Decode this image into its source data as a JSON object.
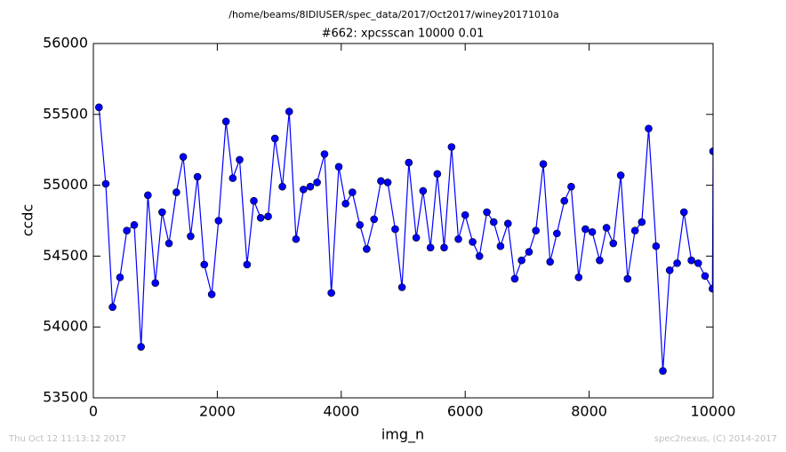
{
  "chart_data": {
    "type": "line",
    "suptitle": "/home/beams/8IDIUSER/spec_data/2017/Oct2017/winey20171010a",
    "title": "#662: xpcsscan 10000 0.01",
    "xlabel": "img_n",
    "ylabel": "ccdc",
    "footer_left": "Thu Oct 12 11:13:12 2017",
    "footer_right": "spec2nexus, (C) 2014-2017",
    "color": "#0000ff",
    "marker": "o",
    "x": [
      90,
      200,
      310,
      430,
      540,
      660,
      770,
      880,
      1000,
      1110,
      1220,
      1340,
      1450,
      1570,
      1680,
      1790,
      1910,
      2020,
      2140,
      2250,
      2360,
      2480,
      2590,
      2700,
      2820,
      2930,
      3050,
      3160,
      3270,
      3390,
      3500,
      3610,
      3730,
      3840,
      3960,
      4070,
      4180,
      4300,
      4410,
      4530,
      4640,
      4750,
      4870,
      4980,
      5090,
      5210,
      5320,
      5440,
      5550,
      5660,
      5780,
      5890,
      6000,
      6120,
      6230,
      6350,
      6460,
      6570,
      6690,
      6800,
      6910,
      7030,
      7140,
      7260,
      7370,
      7480,
      7600,
      7710,
      7830,
      7940,
      8050,
      8170,
      8280,
      8390,
      8510,
      8620,
      8740,
      8850,
      8960,
      9080,
      9190,
      9300,
      9420,
      9530,
      9650,
      9760,
      9870,
      9990,
      10000
    ],
    "values": [
      55550,
      55010,
      54140,
      54350,
      54680,
      54720,
      53860,
      54930,
      54310,
      54810,
      54590,
      54950,
      55200,
      54640,
      55060,
      54440,
      54230,
      54750,
      55450,
      55050,
      55180,
      54440,
      54890,
      54770,
      54780,
      55330,
      54990,
      55520,
      54620,
      54970,
      54990,
      55020,
      55220,
      54240,
      55130,
      54870,
      54950,
      54720,
      54550,
      54760,
      55030,
      55020,
      54690,
      54280,
      55160,
      54630,
      54960,
      54560,
      55080,
      54560,
      55270,
      54620,
      54790,
      54600,
      54500,
      54810,
      54740,
      54570,
      54730,
      54340,
      54470,
      54530,
      54680,
      55150,
      54460,
      54660,
      54890,
      54990,
      54350,
      54690,
      54670,
      54470,
      54700,
      54590,
      55070,
      54340,
      54680,
      54740,
      55400,
      54570,
      53690,
      54400,
      54450,
      54810,
      54470,
      54450,
      54360,
      54270,
      55240
    ],
    "xlim": [
      0,
      10000
    ],
    "xticks": [
      0,
      2000,
      4000,
      6000,
      8000,
      10000
    ],
    "ylim": [
      53500,
      56000
    ],
    "yticks": [
      53500,
      54000,
      54500,
      55000,
      55500,
      56000
    ],
    "grid": false
  }
}
